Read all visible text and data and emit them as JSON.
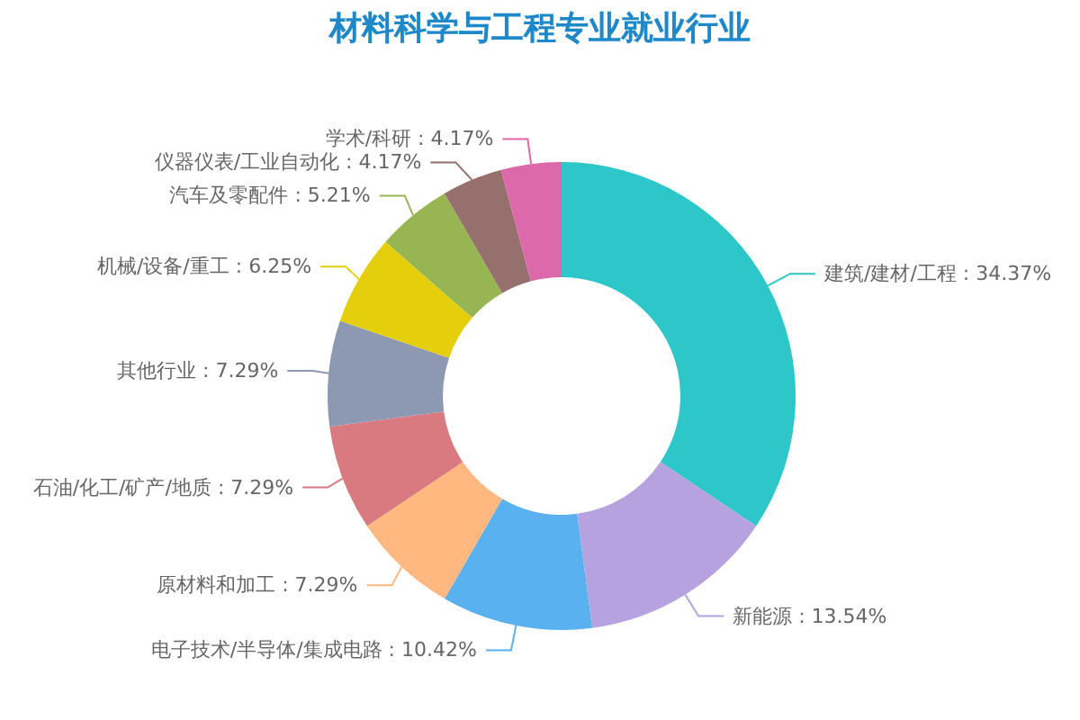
{
  "chart_data": {
    "type": "donut",
    "title": "材料科学与工程专业就业行业",
    "categories": [
      "建筑/建材/工程",
      "新能源",
      "电子技术/半导体/集成电路",
      "原材料和加工",
      "石油/化工/矿产/地质",
      "其他行业",
      "机械/设备/重工",
      "汽车及零配件",
      "仪器仪表/工业自动化",
      "学术/科研"
    ],
    "values": [
      34.37,
      13.54,
      10.42,
      7.29,
      7.29,
      7.29,
      6.25,
      5.21,
      4.17,
      4.17
    ],
    "value_labels": [
      "34.37%",
      "13.54%",
      "10.42%",
      "7.29%",
      "7.29%",
      "7.29%",
      "6.25%",
      "5.21%",
      "4.17%",
      "4.17%"
    ],
    "colors": [
      "#2ec7c9",
      "#b6a2de",
      "#5ab1ef",
      "#ffb980",
      "#d87a80",
      "#8d98b3",
      "#e5cf0d",
      "#97b552",
      "#95706d",
      "#dc69aa"
    ],
    "legend": false
  }
}
